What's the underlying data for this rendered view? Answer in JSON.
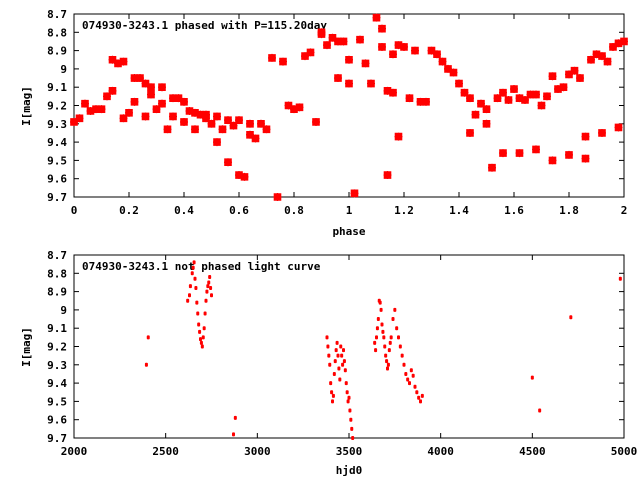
{
  "chart_data": [
    {
      "type": "scatter",
      "title": "074930-3243.1 phased with P=115.20day",
      "xlabel": "phase",
      "ylabel": "I[mag]",
      "xlim": [
        0,
        2
      ],
      "ylim": [
        8.7,
        9.7
      ],
      "y_inverted": true,
      "x_ticks": [
        "0",
        "0.2",
        "0.4",
        "0.6",
        "0.8",
        "1",
        "1.2",
        "1.4",
        "1.6",
        "1.8",
        "2"
      ],
      "y_ticks": [
        "8.7",
        "8.8",
        "8.9",
        "9",
        "9.1",
        "9.2",
        "9.3",
        "9.4",
        "9.5",
        "9.6",
        "9.7"
      ],
      "marker_color": "#ff0000",
      "series": [
        {
          "x": [
            0.0,
            0.02,
            0.04,
            0.06,
            0.08,
            0.1,
            0.12,
            0.14,
            0.14,
            0.16,
            0.18,
            0.18,
            0.2,
            0.22,
            0.22,
            0.24,
            0.26,
            0.26,
            0.28,
            0.28,
            0.3,
            0.32,
            0.32,
            0.34,
            0.36,
            0.36,
            0.38,
            0.4,
            0.4,
            0.42,
            0.44,
            0.44,
            0.46,
            0.48,
            0.48,
            0.5,
            0.52,
            0.52,
            0.54,
            0.56,
            0.56,
            0.58,
            0.6,
            0.6,
            0.62,
            0.64,
            0.64,
            0.66,
            0.68,
            0.7,
            0.72,
            0.74,
            0.76,
            0.78,
            0.8,
            0.82,
            0.84,
            0.86,
            0.88,
            0.9,
            0.92,
            0.94,
            0.96,
            0.98,
            1.0,
            1.02,
            1.04,
            1.06,
            1.08,
            1.1,
            1.12,
            1.14,
            1.14,
            1.16,
            1.18,
            1.18,
            1.2,
            1.22,
            1.24,
            1.26,
            1.28,
            1.3,
            1.32,
            1.34,
            1.36,
            1.38,
            1.4,
            1.42,
            1.44,
            1.46,
            1.48,
            1.5,
            1.52,
            1.54,
            1.56,
            1.58,
            1.6,
            1.62,
            1.64,
            1.66,
            1.68,
            1.7,
            1.72,
            1.74,
            1.76,
            1.78,
            1.8,
            1.82,
            1.84,
            1.86,
            1.88,
            1.9,
            1.92,
            1.94,
            1.96,
            1.98,
            2.0,
            1.44,
            1.5,
            1.56,
            1.62,
            1.68,
            1.74,
            1.8,
            1.86,
            1.92,
            1.98,
            0.9,
            0.96,
            1.0,
            1.12,
            1.16
          ],
          "y": [
            9.29,
            9.27,
            9.19,
            9.23,
            9.22,
            9.22,
            9.15,
            9.12,
            8.95,
            8.97,
            9.27,
            8.96,
            9.24,
            9.05,
            9.18,
            9.05,
            9.08,
            9.26,
            9.1,
            9.14,
            9.22,
            9.1,
            9.19,
            9.33,
            9.16,
            9.26,
            9.16,
            9.29,
            9.18,
            9.23,
            9.33,
            9.24,
            9.25,
            9.27,
            9.25,
            9.3,
            9.26,
            9.4,
            9.33,
            9.28,
            9.51,
            9.31,
            9.58,
            9.28,
            9.59,
            9.36,
            9.3,
            9.38,
            9.3,
            9.33,
            8.94,
            9.7,
            8.96,
            9.2,
            9.22,
            9.21,
            8.93,
            8.91,
            9.29,
            8.81,
            8.87,
            8.83,
            9.05,
            8.85,
            9.08,
            9.68,
            8.84,
            8.97,
            9.08,
            8.72,
            8.78,
            9.12,
            9.58,
            9.13,
            8.87,
            9.37,
            8.88,
            9.16,
            8.9,
            9.18,
            9.18,
            8.9,
            8.92,
            8.96,
            9.0,
            9.02,
            9.08,
            9.13,
            9.16,
            9.25,
            9.19,
            9.22,
            9.54,
            9.16,
            9.13,
            9.17,
            9.11,
            9.16,
            9.17,
            9.14,
            9.14,
            9.2,
            9.15,
            9.04,
            9.11,
            9.1,
            9.03,
            9.01,
            9.05,
            9.37,
            8.95,
            8.92,
            8.93,
            8.96,
            8.88,
            8.86,
            8.85,
            9.35,
            9.3,
            9.46,
            9.46,
            9.44,
            9.5,
            9.47,
            9.49,
            9.35,
            9.32,
            8.8,
            8.85,
            8.95,
            8.88,
            8.92
          ]
        }
      ]
    },
    {
      "type": "scatter",
      "title": "074930-3243.1 not phased light curve",
      "xlabel": "hjd0",
      "ylabel": "I[mag]",
      "xlim": [
        2000,
        5000
      ],
      "ylim": [
        8.7,
        9.7
      ],
      "y_inverted": true,
      "x_ticks": [
        "2000",
        "2500",
        "3000",
        "3500",
        "4000",
        "4500",
        "5000"
      ],
      "y_ticks": [
        "8.7",
        "8.8",
        "8.9",
        "9",
        "9.1",
        "9.2",
        "9.3",
        "9.4",
        "9.5",
        "9.6",
        "9.7"
      ],
      "marker_color": "#ff0000",
      "series": [
        {
          "x": [
            2395,
            2405,
            2620,
            2630,
            2635,
            2645,
            2650,
            2655,
            2660,
            2665,
            2670,
            2675,
            2680,
            2685,
            2690,
            2695,
            2700,
            2705,
            2710,
            2715,
            2720,
            2725,
            2730,
            2735,
            2740,
            2745,
            2750,
            2870,
            2880,
            3380,
            3385,
            3390,
            3395,
            3400,
            3405,
            3410,
            3415,
            3420,
            3425,
            3430,
            3435,
            3440,
            3445,
            3450,
            3455,
            3460,
            3465,
            3470,
            3475,
            3480,
            3485,
            3490,
            3495,
            3500,
            3505,
            3510,
            3515,
            3520,
            3640,
            3645,
            3650,
            3655,
            3660,
            3665,
            3670,
            3675,
            3680,
            3685,
            3690,
            3695,
            3700,
            3705,
            3710,
            3715,
            3720,
            3725,
            3730,
            3740,
            3750,
            3760,
            3770,
            3780,
            3790,
            3800,
            3810,
            3820,
            3830,
            3840,
            3850,
            3860,
            3870,
            3880,
            3890,
            3900,
            4500,
            4540,
            4710,
            4980
          ],
          "y": [
            9.3,
            9.15,
            8.95,
            8.92,
            8.87,
            8.8,
            8.77,
            8.74,
            8.83,
            8.88,
            8.96,
            9.02,
            9.08,
            9.12,
            9.16,
            9.18,
            9.2,
            9.15,
            9.1,
            9.02,
            8.95,
            8.9,
            8.87,
            8.85,
            8.82,
            8.88,
            8.92,
            9.68,
            9.59,
            9.15,
            9.2,
            9.25,
            9.3,
            9.4,
            9.45,
            9.5,
            9.47,
            9.35,
            9.28,
            9.22,
            9.18,
            9.25,
            9.32,
            9.38,
            9.2,
            9.25,
            9.3,
            9.22,
            9.28,
            9.33,
            9.4,
            9.45,
            9.5,
            9.48,
            9.55,
            9.6,
            9.65,
            9.7,
            9.18,
            9.22,
            9.15,
            9.1,
            9.05,
            8.95,
            8.96,
            9.0,
            9.08,
            9.12,
            9.15,
            9.2,
            9.25,
            9.28,
            9.32,
            9.3,
            9.22,
            9.18,
            9.15,
            9.05,
            9.0,
            9.1,
            9.15,
            9.2,
            9.25,
            9.3,
            9.35,
            9.38,
            9.4,
            9.33,
            9.36,
            9.42,
            9.45,
            9.48,
            9.5,
            9.47,
            9.37,
            9.55,
            9.04,
            8.83
          ]
        }
      ]
    }
  ]
}
